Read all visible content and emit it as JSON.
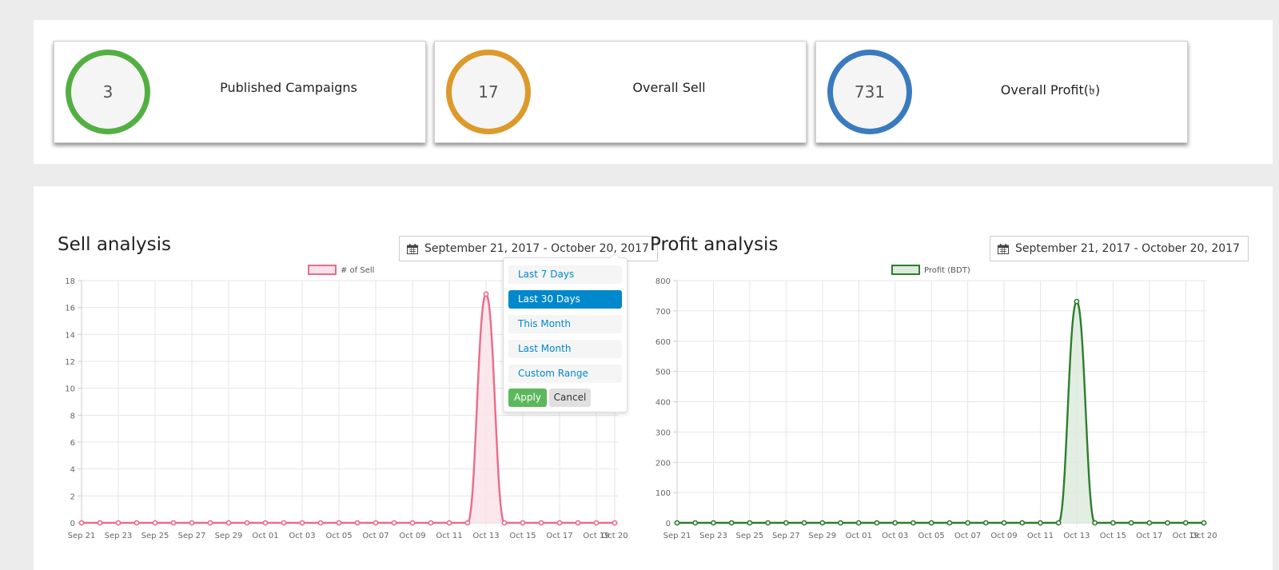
{
  "stats": [
    {
      "value": "3",
      "label": "Published Campaigns",
      "color": "#52b043"
    },
    {
      "value": "17",
      "label": "Overall Sell",
      "color": "#dc9a2a"
    },
    {
      "value": "731",
      "label": "Overall Profit(৳)",
      "color": "#3a7bbf"
    }
  ],
  "sell": {
    "title": "Sell analysis",
    "date_range": "September 21, 2017 - October 20, 2017"
  },
  "profit": {
    "title": "Profit analysis",
    "date_range": "September 21, 2017 - October 20, 2017"
  },
  "range_menu": {
    "items": [
      "Last 7 Days",
      "Last 30 Days",
      "This Month",
      "Last Month",
      "Custom Range"
    ],
    "active": "Last 30 Days",
    "apply_label": "Apply",
    "cancel_label": "Cancel"
  },
  "icons": {
    "calendar": "calendar-icon"
  },
  "chart_data": [
    {
      "type": "area",
      "legend": "# of Sell",
      "color": "#ec6b8a",
      "fill": "#fce3e9",
      "ylim": [
        0,
        18
      ],
      "yticks": [
        0,
        2,
        4,
        6,
        8,
        10,
        12,
        14,
        16,
        18
      ],
      "xtick_labels": [
        "Sep 21",
        "Sep 23",
        "Sep 25",
        "Sep 27",
        "Sep 29",
        "Oct 01",
        "Oct 03",
        "Oct 05",
        "Oct 07",
        "Oct 09",
        "Oct 11",
        "Oct 13",
        "Oct 15",
        "Oct 17",
        "Oct 19",
        "Oct 20"
      ],
      "x": [
        "Sep 21",
        "Sep 22",
        "Sep 23",
        "Sep 24",
        "Sep 25",
        "Sep 26",
        "Sep 27",
        "Sep 28",
        "Sep 29",
        "Sep 30",
        "Oct 01",
        "Oct 02",
        "Oct 03",
        "Oct 04",
        "Oct 05",
        "Oct 06",
        "Oct 07",
        "Oct 08",
        "Oct 09",
        "Oct 10",
        "Oct 11",
        "Oct 12",
        "Oct 13",
        "Oct 14",
        "Oct 15",
        "Oct 16",
        "Oct 17",
        "Oct 18",
        "Oct 19",
        "Oct 20"
      ],
      "values": [
        0,
        0,
        0,
        0,
        0,
        0,
        0,
        0,
        0,
        0,
        0,
        0,
        0,
        0,
        0,
        0,
        0,
        0,
        0,
        0,
        0,
        0,
        17,
        0,
        0,
        0,
        0,
        0,
        0,
        0
      ]
    },
    {
      "type": "area",
      "legend": "Profit (BDT)",
      "color": "#2e7d2e",
      "fill": "#dcebdc",
      "ylim": [
        0,
        800
      ],
      "yticks": [
        0,
        100,
        200,
        300,
        400,
        500,
        600,
        700,
        800
      ],
      "xtick_labels": [
        "Sep 21",
        "Sep 23",
        "Sep 25",
        "Sep 27",
        "Sep 29",
        "Oct 01",
        "Oct 03",
        "Oct 05",
        "Oct 07",
        "Oct 09",
        "Oct 11",
        "Oct 13",
        "Oct 15",
        "Oct 17",
        "Oct 19",
        "Oct 20"
      ],
      "x": [
        "Sep 21",
        "Sep 22",
        "Sep 23",
        "Sep 24",
        "Sep 25",
        "Sep 26",
        "Sep 27",
        "Sep 28",
        "Sep 29",
        "Sep 30",
        "Oct 01",
        "Oct 02",
        "Oct 03",
        "Oct 04",
        "Oct 05",
        "Oct 06",
        "Oct 07",
        "Oct 08",
        "Oct 09",
        "Oct 10",
        "Oct 11",
        "Oct 12",
        "Oct 13",
        "Oct 14",
        "Oct 15",
        "Oct 16",
        "Oct 17",
        "Oct 18",
        "Oct 19",
        "Oct 20"
      ],
      "values": [
        0,
        0,
        0,
        0,
        0,
        0,
        0,
        0,
        0,
        0,
        0,
        0,
        0,
        0,
        0,
        0,
        0,
        0,
        0,
        0,
        0,
        0,
        731,
        0,
        0,
        0,
        0,
        0,
        0,
        0
      ]
    }
  ]
}
